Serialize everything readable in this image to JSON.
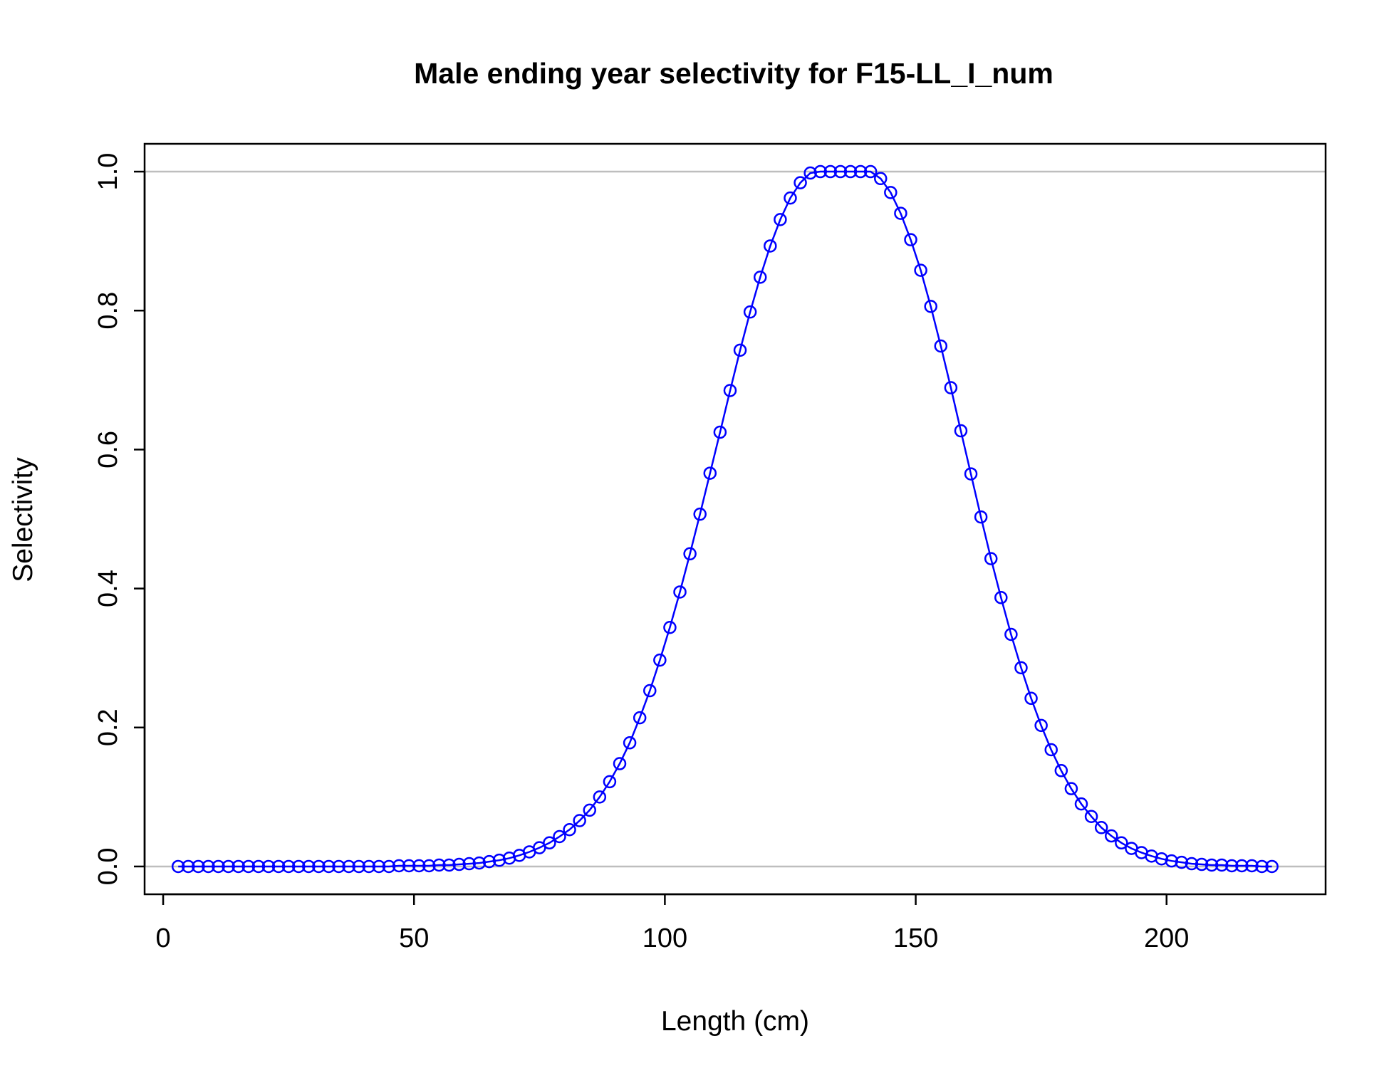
{
  "chart_data": {
    "type": "line",
    "title": "Male ending year selectivity for F15-LL_I_num",
    "xlabel": "Length (cm)",
    "ylabel": "Selectivity",
    "xlim": [
      -3.7,
      231.7
    ],
    "ylim": [
      -0.04,
      1.04
    ],
    "xticks": [
      0,
      50,
      100,
      150,
      200
    ],
    "xtick_labels": [
      "0",
      "50",
      "100",
      "150",
      "200"
    ],
    "yticks": [
      0.0,
      0.2,
      0.4,
      0.6,
      0.8,
      1.0
    ],
    "ytick_labels": [
      "0.0",
      "0.2",
      "0.4",
      "0.6",
      "0.8",
      "1.0"
    ],
    "reference_lines_y": [
      0,
      1
    ],
    "grid": false,
    "colors": {
      "series": "#0000ff",
      "reference": "#bebebe",
      "axes": "#000000"
    },
    "series": [
      {
        "marker": "open-circle",
        "line": true,
        "x": [
          3,
          5,
          7,
          9,
          11,
          13,
          15,
          17,
          19,
          21,
          23,
          25,
          27,
          29,
          31,
          33,
          35,
          37,
          39,
          41,
          43,
          45,
          47,
          49,
          51,
          53,
          55,
          57,
          59,
          61,
          63,
          65,
          67,
          69,
          71,
          73,
          75,
          77,
          79,
          81,
          83,
          85,
          87,
          89,
          91,
          93,
          95,
          97,
          99,
          101,
          103,
          105,
          107,
          109,
          111,
          113,
          115,
          117,
          119,
          121,
          123,
          125,
          127,
          129,
          131,
          133,
          135,
          137,
          139,
          141,
          143,
          145,
          147,
          149,
          151,
          153,
          155,
          157,
          159,
          161,
          163,
          165,
          167,
          169,
          171,
          173,
          175,
          177,
          179,
          181,
          183,
          185,
          187,
          189,
          191,
          193,
          195,
          197,
          199,
          201,
          203,
          205,
          207,
          209,
          211,
          213,
          215,
          217,
          219,
          221
        ],
        "y": [
          0,
          0,
          0,
          0,
          0,
          0,
          0,
          0,
          0,
          0,
          0,
          0,
          0,
          0,
          0,
          0,
          0,
          0,
          0,
          0,
          0,
          0,
          0.001,
          0.001,
          0.001,
          0.001,
          0.002,
          0.002,
          0.003,
          0.004,
          0.005,
          0.007,
          0.009,
          0.012,
          0.016,
          0.021,
          0.027,
          0.034,
          0.043,
          0.053,
          0.066,
          0.081,
          0.1,
          0.122,
          0.148,
          0.178,
          0.214,
          0.253,
          0.297,
          0.344,
          0.395,
          0.45,
          0.507,
          0.566,
          0.625,
          0.685,
          0.743,
          0.798,
          0.848,
          0.893,
          0.931,
          0.962,
          0.984,
          0.998,
          1.0,
          1.0,
          1.0,
          1.0,
          1.0,
          1.0,
          0.99,
          0.97,
          0.94,
          0.902,
          0.858,
          0.806,
          0.749,
          0.689,
          0.627,
          0.565,
          0.503,
          0.443,
          0.387,
          0.334,
          0.286,
          0.242,
          0.203,
          0.168,
          0.138,
          0.112,
          0.09,
          0.072,
          0.056,
          0.044,
          0.034,
          0.026,
          0.02,
          0.015,
          0.011,
          0.008,
          0.006,
          0.004,
          0.003,
          0.002,
          0.002,
          0.001,
          0.001,
          0.001,
          0,
          0
        ]
      }
    ]
  }
}
